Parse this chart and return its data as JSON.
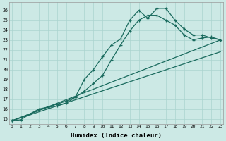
{
  "background_color": "#cce9e5",
  "grid_color": "#aad4cf",
  "line_color": "#1a6b5e",
  "xlabel": "Humidex (Indice chaleur)",
  "xlim": [
    -0.3,
    23.3
  ],
  "ylim": [
    14.5,
    26.8
  ],
  "xticks": [
    0,
    1,
    2,
    3,
    4,
    5,
    6,
    7,
    8,
    9,
    10,
    11,
    12,
    13,
    14,
    15,
    16,
    17,
    18,
    19,
    20,
    21,
    22,
    23
  ],
  "yticks": [
    15,
    16,
    17,
    18,
    19,
    20,
    21,
    22,
    23,
    24,
    25,
    26
  ],
  "series1_x": [
    0,
    1,
    2,
    3,
    4,
    5,
    6,
    7,
    8,
    9,
    10,
    11,
    12,
    13,
    14,
    15,
    16,
    17,
    18,
    19,
    20,
    21,
    22,
    23
  ],
  "series1_y": [
    14.8,
    14.9,
    15.5,
    16.0,
    16.2,
    16.3,
    16.6,
    17.2,
    19.0,
    20.0,
    21.3,
    22.5,
    23.1,
    25.0,
    26.0,
    25.2,
    26.2,
    26.2,
    25.0,
    24.1,
    23.5,
    23.5,
    23.2,
    23.0
  ],
  "series2_x": [
    0,
    4,
    5,
    6,
    7,
    8,
    9,
    10,
    11,
    12,
    13,
    14,
    15,
    16,
    17,
    18,
    19,
    20,
    21,
    22,
    23
  ],
  "series2_y": [
    14.8,
    16.2,
    16.5,
    16.8,
    17.2,
    17.8,
    18.6,
    19.4,
    21.0,
    22.5,
    23.9,
    25.0,
    25.5,
    25.5,
    25.0,
    24.5,
    23.5,
    23.0,
    23.2,
    23.3,
    23.0
  ],
  "series3_x": [
    0,
    23
  ],
  "series3_y": [
    14.8,
    23.0
  ],
  "series4_x": [
    0,
    23
  ],
  "series4_y": [
    14.8,
    21.8
  ]
}
